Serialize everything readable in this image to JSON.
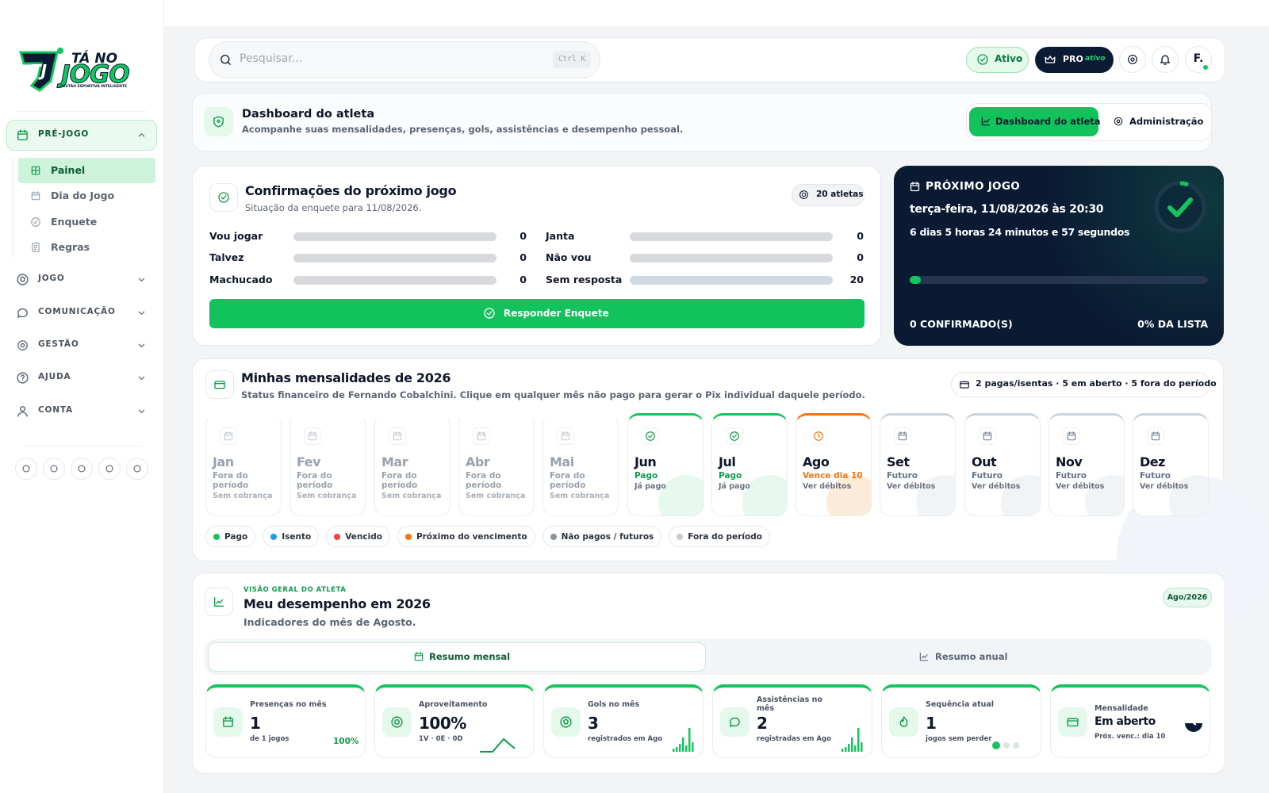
{
  "sidebar": {
    "logo": {
      "line1": "TÁ NO",
      "line2": "JOGO",
      "tagline": "GESTÃO ESPORTIVA INTELIGENTE"
    },
    "sections": [
      {
        "label": "PRÉ-JOGO",
        "items": [
          "Painel",
          "Dia do Jogo",
          "Enquete",
          "Regras"
        ]
      },
      {
        "label": "JOGO"
      },
      {
        "label": "COMUNICAÇÃO"
      },
      {
        "label": "GESTÃO"
      },
      {
        "label": "AJUDA"
      },
      {
        "label": "CONTA"
      }
    ]
  },
  "topbar": {
    "search_placeholder": "Pesquisar...",
    "shortcut": "Ctrl K",
    "status": "Ativo",
    "plan": "PRO",
    "plan_status": "ativo",
    "avatar": "F."
  },
  "header": {
    "title": "Dashboard do atleta",
    "subtitle": "Acompanhe suas mensalidades, presenças, gols, assistências e desempenho pessoal.",
    "tabs": [
      "Dashboard do atleta",
      "Administração"
    ]
  },
  "confirmations": {
    "title": "Confirmações do próximo jogo",
    "subtitle": "Situação da enquete para 11/08/2026.",
    "badge": "20 atletas",
    "rows": [
      {
        "label": "Vou jogar",
        "count": "0"
      },
      {
        "label": "Janta",
        "count": "0"
      },
      {
        "label": "Talvez",
        "count": "0"
      },
      {
        "label": "Não vou",
        "count": "0"
      },
      {
        "label": "Machucado",
        "count": "0"
      },
      {
        "label": "Sem resposta",
        "count": "20"
      }
    ],
    "button": "Responder Enquete"
  },
  "next_game": {
    "label": "PRÓXIMO JOGO",
    "date": "terça-feira, 11/08/2026 às 20:30",
    "countdown": "6 dias 5 horas 24 minutos e 57 segundos",
    "confirmed": "0 CONFIRMADO(S)",
    "percent": "0% DA LISTA"
  },
  "fees": {
    "title": "Minhas mensalidades de 2026",
    "subtitle": "Status financeiro de Fernando Cobalchini. Clique em qualquer mês não pago para gerar o Pix individual daquele período.",
    "summary": "2 pagas/isentas · 5 em aberto · 5 fora do período",
    "months": [
      {
        "name": "Jan",
        "status": "Fora do período",
        "detail": "Sem cobrança"
      },
      {
        "name": "Fev",
        "status": "Fora do período",
        "detail": "Sem cobrança"
      },
      {
        "name": "Mar",
        "status": "Fora do período",
        "detail": "Sem cobrança"
      },
      {
        "name": "Abr",
        "status": "Fora do período",
        "detail": "Sem cobrança"
      },
      {
        "name": "Mai",
        "status": "Fora do período",
        "detail": "Sem cobrança"
      },
      {
        "name": "Jun",
        "status": "Pago",
        "detail": "Já pago"
      },
      {
        "name": "Jul",
        "status": "Pago",
        "detail": "Já pago"
      },
      {
        "name": "Ago",
        "status": "Vence dia 10",
        "detail": "Ver débitos"
      },
      {
        "name": "Set",
        "status": "Futuro",
        "detail": "Ver débitos"
      },
      {
        "name": "Out",
        "status": "Futuro",
        "detail": "Ver débitos"
      },
      {
        "name": "Nov",
        "status": "Futuro",
        "detail": "Ver débitos"
      },
      {
        "name": "Dez",
        "status": "Futuro",
        "detail": "Ver débitos"
      }
    ],
    "legend": [
      "Pago",
      "Isento",
      "Vencido",
      "Próximo do vencimento",
      "Não pagos / futuros",
      "Fora do período"
    ]
  },
  "performance": {
    "eyebrow": "VISÃO GERAL DO ATLETA",
    "title": "Meu desempenho em 2026",
    "subtitle": "Indicadores do mês de Agosto.",
    "period": "Ago/2026",
    "tabs": [
      "Resumo mensal",
      "Resumo anual"
    ],
    "cards": [
      {
        "label": "Presenças no mês",
        "value": "1",
        "detail": "de 1 jogos",
        "extra": "100%"
      },
      {
        "label": "Aproveitamento",
        "value": "100%",
        "detail": "1V · 0E · 0D"
      },
      {
        "label": "Gols no mês",
        "value": "3",
        "detail": "registrados em Ago"
      },
      {
        "label": "Assistências no mês",
        "value": "2",
        "detail": "registradas em Ago"
      },
      {
        "label": "Sequência atual",
        "value": "1",
        "detail": "jogos sem perder"
      },
      {
        "label": "Mensalidade",
        "value": "Em aberto",
        "detail": "Próx. venc.: dia 10"
      }
    ]
  }
}
